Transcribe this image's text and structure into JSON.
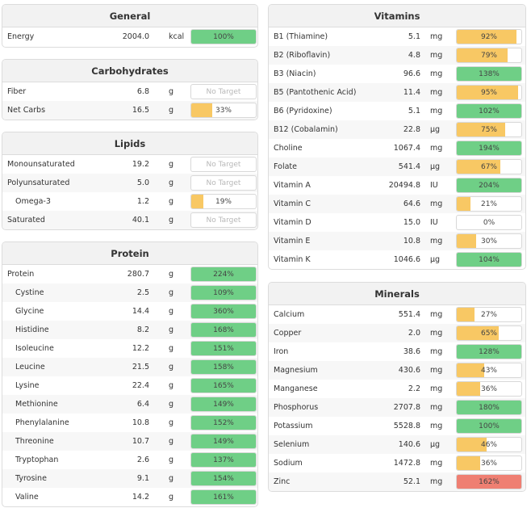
{
  "colors": {
    "green": "#6fcf86",
    "yellow": "#f8c864",
    "red": "#ef7f72"
  },
  "panels": [
    {
      "key": "general",
      "title": "General",
      "rows": [
        {
          "name": "Energy",
          "amount": "2004.0",
          "unit": "kcal",
          "pct": "100%",
          "fill": 1.0,
          "color": "green"
        }
      ]
    },
    {
      "key": "carbohydrates",
      "title": "Carbohydrates",
      "rows": [
        {
          "name": "Fiber",
          "amount": "6.8",
          "unit": "g",
          "pct": "No Target",
          "fill": 0,
          "color": "none"
        },
        {
          "name": "Net Carbs",
          "amount": "16.5",
          "unit": "g",
          "pct": "33%",
          "fill": 0.33,
          "color": "yellow"
        }
      ]
    },
    {
      "key": "lipids",
      "title": "Lipids",
      "rows": [
        {
          "name": "Monounsaturated",
          "amount": "19.2",
          "unit": "g",
          "pct": "No Target",
          "fill": 0,
          "color": "none"
        },
        {
          "name": "Polyunsaturated",
          "amount": "5.0",
          "unit": "g",
          "pct": "No Target",
          "fill": 0,
          "color": "none"
        },
        {
          "name": "Omega-3",
          "amount": "1.2",
          "unit": "g",
          "pct": "19%",
          "fill": 0.19,
          "color": "yellow",
          "indent": true
        },
        {
          "name": "Saturated",
          "amount": "40.1",
          "unit": "g",
          "pct": "No Target",
          "fill": 0,
          "color": "none"
        }
      ]
    },
    {
      "key": "protein",
      "title": "Protein",
      "rows": [
        {
          "name": "Protein",
          "amount": "280.7",
          "unit": "g",
          "pct": "224%",
          "fill": 1.0,
          "color": "green"
        },
        {
          "name": "Cystine",
          "amount": "2.5",
          "unit": "g",
          "pct": "109%",
          "fill": 1.0,
          "color": "green",
          "indent": true
        },
        {
          "name": "Glycine",
          "amount": "14.4",
          "unit": "g",
          "pct": "360%",
          "fill": 1.0,
          "color": "green",
          "indent": true
        },
        {
          "name": "Histidine",
          "amount": "8.2",
          "unit": "g",
          "pct": "168%",
          "fill": 1.0,
          "color": "green",
          "indent": true
        },
        {
          "name": "Isoleucine",
          "amount": "12.2",
          "unit": "g",
          "pct": "151%",
          "fill": 1.0,
          "color": "green",
          "indent": true
        },
        {
          "name": "Leucine",
          "amount": "21.5",
          "unit": "g",
          "pct": "158%",
          "fill": 1.0,
          "color": "green",
          "indent": true
        },
        {
          "name": "Lysine",
          "amount": "22.4",
          "unit": "g",
          "pct": "165%",
          "fill": 1.0,
          "color": "green",
          "indent": true
        },
        {
          "name": "Methionine",
          "amount": "6.4",
          "unit": "g",
          "pct": "149%",
          "fill": 1.0,
          "color": "green",
          "indent": true
        },
        {
          "name": "Phenylalanine",
          "amount": "10.8",
          "unit": "g",
          "pct": "152%",
          "fill": 1.0,
          "color": "green",
          "indent": true
        },
        {
          "name": "Threonine",
          "amount": "10.7",
          "unit": "g",
          "pct": "149%",
          "fill": 1.0,
          "color": "green",
          "indent": true
        },
        {
          "name": "Tryptophan",
          "amount": "2.6",
          "unit": "g",
          "pct": "137%",
          "fill": 1.0,
          "color": "green",
          "indent": true
        },
        {
          "name": "Tyrosine",
          "amount": "9.1",
          "unit": "g",
          "pct": "154%",
          "fill": 1.0,
          "color": "green",
          "indent": true
        },
        {
          "name": "Valine",
          "amount": "14.2",
          "unit": "g",
          "pct": "161%",
          "fill": 1.0,
          "color": "green",
          "indent": true
        }
      ]
    },
    {
      "key": "vitamins",
      "title": "Vitamins",
      "rows": [
        {
          "name": "B1 (Thiamine)",
          "amount": "5.1",
          "unit": "mg",
          "pct": "92%",
          "fill": 0.92,
          "color": "yellow"
        },
        {
          "name": "B2 (Riboflavin)",
          "amount": "4.8",
          "unit": "mg",
          "pct": "79%",
          "fill": 0.79,
          "color": "yellow"
        },
        {
          "name": "B3 (Niacin)",
          "amount": "96.6",
          "unit": "mg",
          "pct": "138%",
          "fill": 1.0,
          "color": "green"
        },
        {
          "name": "B5 (Pantothenic Acid)",
          "amount": "11.4",
          "unit": "mg",
          "pct": "95%",
          "fill": 0.95,
          "color": "yellow"
        },
        {
          "name": "B6 (Pyridoxine)",
          "amount": "5.1",
          "unit": "mg",
          "pct": "102%",
          "fill": 1.0,
          "color": "green"
        },
        {
          "name": "B12 (Cobalamin)",
          "amount": "22.8",
          "unit": "µg",
          "pct": "75%",
          "fill": 0.75,
          "color": "yellow"
        },
        {
          "name": "Choline",
          "amount": "1067.4",
          "unit": "mg",
          "pct": "194%",
          "fill": 1.0,
          "color": "green"
        },
        {
          "name": "Folate",
          "amount": "541.4",
          "unit": "µg",
          "pct": "67%",
          "fill": 0.67,
          "color": "yellow"
        },
        {
          "name": "Vitamin A",
          "amount": "20494.8",
          "unit": "IU",
          "pct": "204%",
          "fill": 1.0,
          "color": "green"
        },
        {
          "name": "Vitamin C",
          "amount": "64.6",
          "unit": "mg",
          "pct": "21%",
          "fill": 0.21,
          "color": "yellow"
        },
        {
          "name": "Vitamin D",
          "amount": "15.0",
          "unit": "IU",
          "pct": "0%",
          "fill": 0,
          "color": "yellow"
        },
        {
          "name": "Vitamin E",
          "amount": "10.8",
          "unit": "mg",
          "pct": "30%",
          "fill": 0.3,
          "color": "yellow"
        },
        {
          "name": "Vitamin K",
          "amount": "1046.6",
          "unit": "µg",
          "pct": "104%",
          "fill": 1.0,
          "color": "green"
        }
      ]
    },
    {
      "key": "minerals",
      "title": "Minerals",
      "rows": [
        {
          "name": "Calcium",
          "amount": "551.4",
          "unit": "mg",
          "pct": "27%",
          "fill": 0.27,
          "color": "yellow"
        },
        {
          "name": "Copper",
          "amount": "2.0",
          "unit": "mg",
          "pct": "65%",
          "fill": 0.65,
          "color": "yellow"
        },
        {
          "name": "Iron",
          "amount": "38.6",
          "unit": "mg",
          "pct": "128%",
          "fill": 1.0,
          "color": "green"
        },
        {
          "name": "Magnesium",
          "amount": "430.6",
          "unit": "mg",
          "pct": "43%",
          "fill": 0.43,
          "color": "yellow"
        },
        {
          "name": "Manganese",
          "amount": "2.2",
          "unit": "mg",
          "pct": "36%",
          "fill": 0.36,
          "color": "yellow"
        },
        {
          "name": "Phosphorus",
          "amount": "2707.8",
          "unit": "mg",
          "pct": "180%",
          "fill": 1.0,
          "color": "green"
        },
        {
          "name": "Potassium",
          "amount": "5528.8",
          "unit": "mg",
          "pct": "100%",
          "fill": 1.0,
          "color": "green"
        },
        {
          "name": "Selenium",
          "amount": "140.6",
          "unit": "µg",
          "pct": "46%",
          "fill": 0.46,
          "color": "yellow"
        },
        {
          "name": "Sodium",
          "amount": "1472.8",
          "unit": "mg",
          "pct": "36%",
          "fill": 0.36,
          "color": "yellow"
        },
        {
          "name": "Zinc",
          "amount": "52.1",
          "unit": "mg",
          "pct": "162%",
          "fill": 1.0,
          "color": "red"
        }
      ]
    }
  ]
}
